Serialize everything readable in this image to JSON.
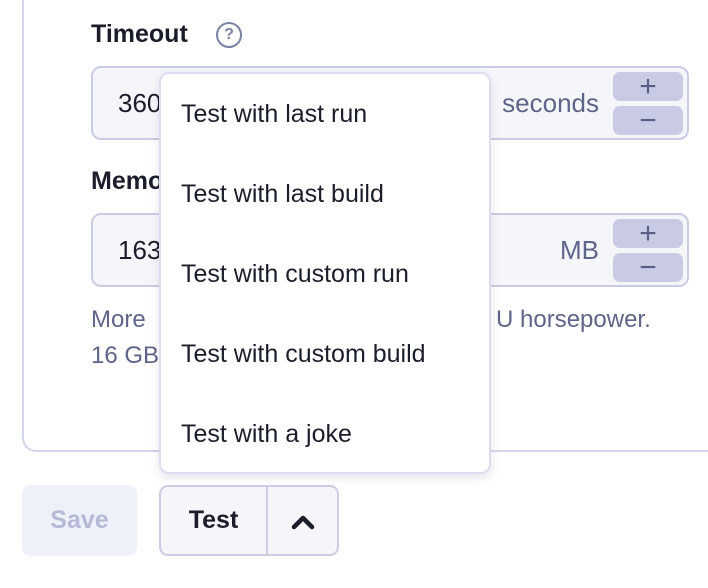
{
  "timeout": {
    "label": "Timeout",
    "help_icon": "question-circle-icon",
    "value": "360",
    "unit": "seconds",
    "increment": "+",
    "decrement": "−"
  },
  "memory": {
    "label": "Memory",
    "value": "163",
    "unit": "MB",
    "increment": "+",
    "decrement": "−"
  },
  "helper": {
    "line1_start": "More",
    "line1_end": "U horsepower.",
    "line2_start": "16 GB"
  },
  "menu": {
    "items": [
      "Test with last run",
      "Test with last build",
      "Test with custom run",
      "Test with custom build",
      "Test with a joke"
    ]
  },
  "actions": {
    "save_label": "Save",
    "test_label": "Test",
    "toggle_icon": "chevron-up-icon"
  },
  "colors": {
    "border": "#c9cce3",
    "stepper": "#c8cbe3",
    "muted_text": "#5f6489",
    "disabled_text": "#b6bad6"
  }
}
